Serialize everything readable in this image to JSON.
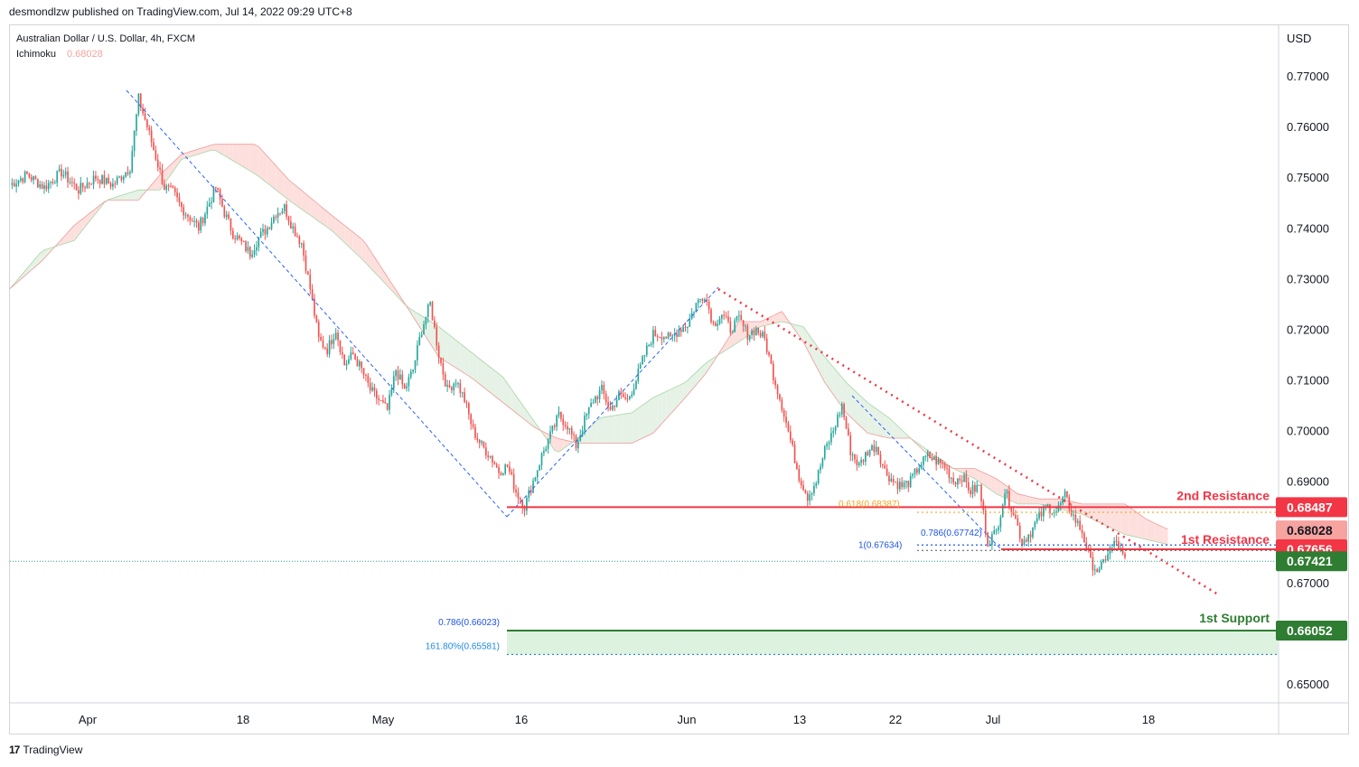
{
  "header": {
    "published": "desmondlzw published on TradingView.com, Jul 14, 2022 09:29 UTC+8"
  },
  "footer": {
    "brand": "TradingView",
    "logo_glyph": "17"
  },
  "chart_data": {
    "type": "candlestick",
    "symbol_line": "Australian Dollar / U.S. Dollar, 4h, FXCM",
    "indicator": {
      "name": "Ichimoku",
      "value": "0.68028"
    },
    "currency": "USD",
    "y_ticks": [
      "0.77000",
      "0.76000",
      "0.75000",
      "0.74000",
      "0.73000",
      "0.72000",
      "0.71000",
      "0.70000",
      "0.69000",
      "0.67000",
      "0.65000"
    ],
    "x_ticks": [
      "Apr",
      "18",
      "May",
      "16",
      "Jun",
      "13",
      "22",
      "Jul",
      "18"
    ],
    "ylim": [
      0.6455,
      0.7752
    ],
    "price_path": [
      [
        0,
        0.7485
      ],
      [
        8,
        0.7505
      ],
      [
        16,
        0.748
      ],
      [
        24,
        0.751
      ],
      [
        32,
        0.7475
      ],
      [
        40,
        0.75
      ],
      [
        48,
        0.7485
      ],
      [
        56,
        0.752
      ],
      [
        60,
        0.7655
      ],
      [
        64,
        0.76
      ],
      [
        68,
        0.754
      ],
      [
        72,
        0.748
      ],
      [
        76,
        0.747
      ],
      [
        80,
        0.744
      ],
      [
        84,
        0.742
      ],
      [
        88,
        0.74
      ],
      [
        92,
        0.744
      ],
      [
        96,
        0.748
      ],
      [
        100,
        0.743
      ],
      [
        104,
        0.739
      ],
      [
        108,
        0.737
      ],
      [
        112,
        0.735
      ],
      [
        116,
        0.738
      ],
      [
        120,
        0.74
      ],
      [
        124,
        0.743
      ],
      [
        128,
        0.744
      ],
      [
        132,
        0.74
      ],
      [
        136,
        0.737
      ],
      [
        140,
        0.728
      ],
      [
        144,
        0.718
      ],
      [
        148,
        0.716
      ],
      [
        152,
        0.72
      ],
      [
        156,
        0.713
      ],
      [
        160,
        0.715
      ],
      [
        164,
        0.712
      ],
      [
        168,
        0.708
      ],
      [
        172,
        0.706
      ],
      [
        176,
        0.704
      ],
      [
        180,
        0.712
      ],
      [
        184,
        0.708
      ],
      [
        188,
        0.712
      ],
      [
        192,
        0.72
      ],
      [
        196,
        0.725
      ],
      [
        200,
        0.715
      ],
      [
        204,
        0.708
      ],
      [
        208,
        0.71
      ],
      [
        212,
        0.706
      ],
      [
        216,
        0.7
      ],
      [
        220,
        0.697
      ],
      [
        224,
        0.695
      ],
      [
        228,
        0.692
      ],
      [
        232,
        0.693
      ],
      [
        236,
        0.688
      ],
      [
        240,
        0.685
      ],
      [
        244,
        0.69
      ],
      [
        248,
        0.695
      ],
      [
        252,
        0.699
      ],
      [
        256,
        0.703
      ],
      [
        260,
        0.701
      ],
      [
        264,
        0.697
      ],
      [
        268,
        0.702
      ],
      [
        272,
        0.706
      ],
      [
        276,
        0.708
      ],
      [
        280,
        0.704
      ],
      [
        284,
        0.707
      ],
      [
        288,
        0.706
      ],
      [
        292,
        0.71
      ],
      [
        296,
        0.715
      ],
      [
        300,
        0.719
      ],
      [
        304,
        0.719
      ],
      [
        308,
        0.718
      ],
      [
        312,
        0.72
      ],
      [
        316,
        0.721
      ],
      [
        320,
        0.725
      ],
      [
        324,
        0.727
      ],
      [
        328,
        0.721
      ],
      [
        332,
        0.723
      ],
      [
        336,
        0.72
      ],
      [
        340,
        0.722
      ],
      [
        344,
        0.719
      ],
      [
        348,
        0.72
      ],
      [
        352,
        0.718
      ],
      [
        356,
        0.711
      ],
      [
        360,
        0.705
      ],
      [
        364,
        0.698
      ],
      [
        368,
        0.691
      ],
      [
        372,
        0.687
      ],
      [
        376,
        0.69
      ],
      [
        380,
        0.696
      ],
      [
        384,
        0.7
      ],
      [
        388,
        0.705
      ],
      [
        392,
        0.696
      ],
      [
        396,
        0.693
      ],
      [
        400,
        0.696
      ],
      [
        404,
        0.697
      ],
      [
        408,
        0.692
      ],
      [
        412,
        0.69
      ],
      [
        416,
        0.689
      ],
      [
        420,
        0.69
      ],
      [
        424,
        0.693
      ],
      [
        428,
        0.695
      ],
      [
        432,
        0.694
      ],
      [
        436,
        0.693
      ],
      [
        440,
        0.69
      ],
      [
        444,
        0.691
      ],
      [
        448,
        0.688
      ],
      [
        452,
        0.689
      ],
      [
        456,
        0.678
      ],
      [
        460,
        0.68
      ],
      [
        464,
        0.688
      ],
      [
        468,
        0.684
      ],
      [
        472,
        0.678
      ],
      [
        476,
        0.68
      ],
      [
        480,
        0.683
      ],
      [
        484,
        0.685
      ],
      [
        488,
        0.684
      ],
      [
        492,
        0.687
      ],
      [
        496,
        0.683
      ],
      [
        500,
        0.68
      ],
      [
        504,
        0.674
      ],
      [
        508,
        0.672
      ],
      [
        512,
        0.676
      ],
      [
        516,
        0.678
      ],
      [
        520,
        0.6742
      ]
    ],
    "ichimoku_cloud": {
      "span_a": [
        [
          0,
          0.728
        ],
        [
          15,
          0.7355
        ],
        [
          30,
          0.7375
        ],
        [
          45,
          0.7455
        ],
        [
          60,
          0.7475
        ],
        [
          70,
          0.7475
        ],
        [
          80,
          0.7535
        ],
        [
          95,
          0.7555
        ],
        [
          115,
          0.7505
        ],
        [
          130,
          0.7455
        ],
        [
          150,
          0.7395
        ],
        [
          165,
          0.7335
        ],
        [
          185,
          0.7245
        ],
        [
          200,
          0.7205
        ],
        [
          215,
          0.7155
        ],
        [
          230,
          0.7105
        ],
        [
          245,
          0.7015
        ],
        [
          255,
          0.6955
        ],
        [
          265,
          0.6985
        ],
        [
          275,
          0.7025
        ],
        [
          290,
          0.7035
        ],
        [
          300,
          0.7065
        ],
        [
          315,
          0.7095
        ],
        [
          325,
          0.7135
        ],
        [
          340,
          0.7175
        ],
        [
          350,
          0.7205
        ],
        [
          360,
          0.7215
        ],
        [
          370,
          0.7205
        ],
        [
          380,
          0.7145
        ],
        [
          390,
          0.7095
        ],
        [
          400,
          0.7055
        ],
        [
          410,
          0.7025
        ],
        [
          420,
          0.6985
        ],
        [
          430,
          0.6955
        ],
        [
          440,
          0.6925
        ],
        [
          450,
          0.6905
        ],
        [
          460,
          0.6875
        ],
        [
          470,
          0.6855
        ],
        [
          480,
          0.6855
        ],
        [
          490,
          0.6845
        ],
        [
          500,
          0.6835
        ],
        [
          510,
          0.6815
        ],
        [
          520,
          0.6795
        ],
        [
          530,
          0.6785
        ],
        [
          540,
          0.6775
        ]
      ],
      "span_b": [
        [
          0,
          0.728
        ],
        [
          15,
          0.7335
        ],
        [
          30,
          0.7405
        ],
        [
          45,
          0.7455
        ],
        [
          60,
          0.7455
        ],
        [
          70,
          0.7505
        ],
        [
          80,
          0.7545
        ],
        [
          95,
          0.7565
        ],
        [
          115,
          0.7565
        ],
        [
          130,
          0.7495
        ],
        [
          150,
          0.7425
        ],
        [
          165,
          0.7375
        ],
        [
          185,
          0.7245
        ],
        [
          200,
          0.7145
        ],
        [
          215,
          0.7105
        ],
        [
          230,
          0.7055
        ],
        [
          245,
          0.7005
        ],
        [
          255,
          0.6985
        ],
        [
          265,
          0.6975
        ],
        [
          275,
          0.6975
        ],
        [
          290,
          0.6975
        ],
        [
          300,
          0.6995
        ],
        [
          315,
          0.7065
        ],
        [
          325,
          0.7115
        ],
        [
          340,
          0.7215
        ],
        [
          350,
          0.7215
        ],
        [
          360,
          0.7235
        ],
        [
          370,
          0.7175
        ],
        [
          380,
          0.7095
        ],
        [
          390,
          0.7035
        ],
        [
          400,
          0.6995
        ],
        [
          410,
          0.6985
        ],
        [
          420,
          0.6985
        ],
        [
          430,
          0.6945
        ],
        [
          440,
          0.6925
        ],
        [
          450,
          0.6925
        ],
        [
          460,
          0.6905
        ],
        [
          470,
          0.6875
        ],
        [
          480,
          0.6865
        ],
        [
          490,
          0.6865
        ],
        [
          500,
          0.6855
        ],
        [
          510,
          0.6855
        ],
        [
          520,
          0.6855
        ],
        [
          530,
          0.6825
        ],
        [
          540,
          0.6805
        ]
      ]
    },
    "current_price": {
      "value": 0.67421,
      "label": "0.67421",
      "color": "#089981"
    },
    "levels": [
      {
        "name": "2nd Resistance",
        "value": 0.68487,
        "label": "0.68487",
        "color": "#f23645"
      },
      {
        "name": "ichimoku",
        "value": 0.68028,
        "label": "0.68028",
        "color": "#f7a3a0"
      },
      {
        "name": "1st Resistance",
        "value": 0.67656,
        "label": "0.67656",
        "color": "#f23645"
      },
      {
        "name": "1st Support",
        "value": 0.66052,
        "label": "0.66052",
        "color": "#2e7d32"
      }
    ],
    "fib_labels": {
      "f618": "0.618(0.68387)",
      "f786_res": "0.786(0.67742)",
      "f1": "1(0.67634)",
      "f786_sup": "0.786(0.66023)",
      "f1618": "161.80%(0.65581)"
    },
    "support_zone": [
      0.65581,
      0.66052
    ],
    "colors": {
      "up": "#26a69a",
      "down": "#ef5350",
      "cloud_bull": "#e6f2e6",
      "cloud_bear": "#fde0dd",
      "trend_blue": "#2962ff",
      "trend_red": "#f23645",
      "fib_orange": "#f5a623"
    }
  }
}
